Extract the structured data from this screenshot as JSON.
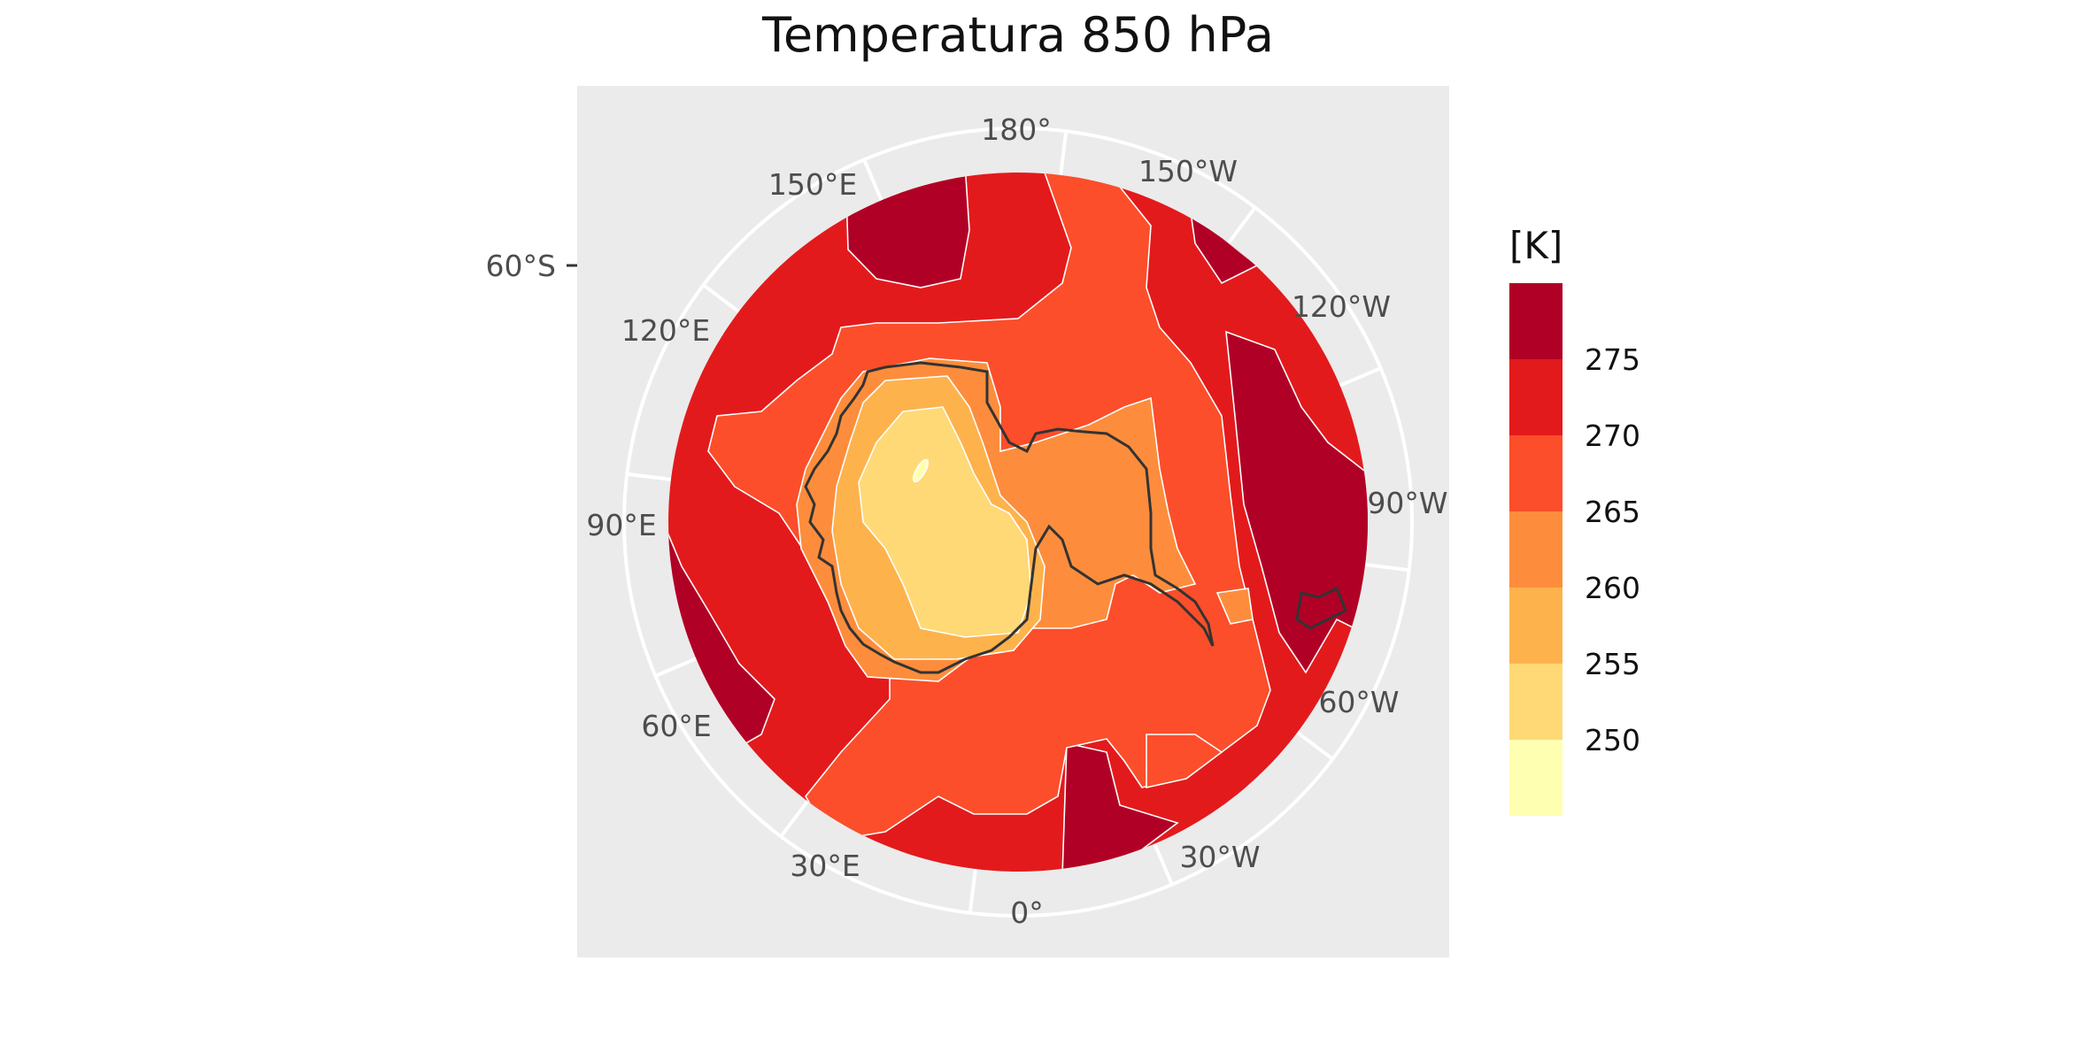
{
  "title": "Temperatura 850 hPa",
  "legend": {
    "title": "[K]",
    "bins": [
      {
        "label": "",
        "color": "#b10026"
      },
      {
        "label": "275",
        "color": "#e31a1c"
      },
      {
        "label": "270",
        "color": "#fc4e2a"
      },
      {
        "label": "265",
        "color": "#fd8d3c"
      },
      {
        "label": "260",
        "color": "#feb24c"
      },
      {
        "label": "255",
        "color": "#fed976"
      },
      {
        "label": "250",
        "color": "#ffffb2"
      }
    ]
  },
  "lat_label": "60°S",
  "lon_labels": [
    "180°",
    "150°W",
    "120°W",
    "90°W",
    "60°W",
    "30°W",
    "0°",
    "30°E",
    "60°E",
    "90°E",
    "120°E",
    "150°E"
  ],
  "colors": {
    "panel": "#ebebeb",
    "grid": "#ffffff",
    "coast": "#333333"
  }
}
